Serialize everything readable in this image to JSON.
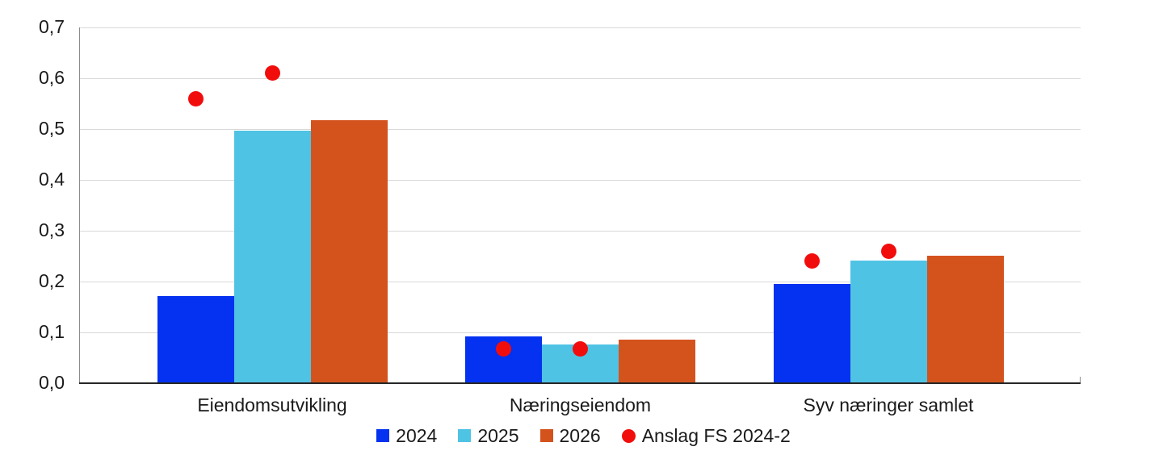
{
  "chart_data": {
    "type": "bar",
    "title": "",
    "categories": [
      "Eiendomsutvikling",
      "Næringseiendom",
      "Syv næringer samlet"
    ],
    "series": [
      {
        "name": "2024",
        "color": "#0531f0",
        "values": [
          0.172,
          0.092,
          0.196
        ]
      },
      {
        "name": "2025",
        "color": "#4fc3e4",
        "values": [
          0.497,
          0.077,
          0.241
        ]
      },
      {
        "name": "2026",
        "color": "#d4531d",
        "values": [
          0.517,
          0.085,
          0.251
        ]
      }
    ],
    "scatter_series": {
      "name": "Anslag FS 2024-2",
      "color": "#f20d0d",
      "marker": "circle",
      "points": [
        {
          "category": "Eiendomsutvikling",
          "category_index": 0,
          "over_series": [
            0,
            1
          ],
          "values": [
            0.56,
            0.61
          ]
        },
        {
          "category": "Næringseiendom",
          "category_index": 1,
          "over_series": [
            0,
            1
          ],
          "values": [
            0.068,
            0.068
          ]
        },
        {
          "category": "Syv næringer samlet",
          "category_index": 2,
          "over_series": [
            0,
            1
          ],
          "values": [
            0.24,
            0.26
          ]
        }
      ]
    },
    "y_axis": {
      "min": 0,
      "max": 0.7,
      "step": 0.1,
      "tick_labels": [
        "0,0",
        "0,1",
        "0,2",
        "0,3",
        "0,4",
        "0,5",
        "0,6",
        "0,7"
      ],
      "decimal_separator": ","
    },
    "x_axis": {
      "labels": [
        "Eiendomsutvikling",
        "Næringseiendom",
        "Syv næringer samlet"
      ]
    },
    "grid": true,
    "legend_position": "bottom",
    "legend_labels": [
      "2024",
      "2025",
      "2026",
      "Anslag FS 2024-2"
    ],
    "colors": {
      "background": "#ffffff",
      "gridline": "#d9d9d9",
      "axis_line": "#262626",
      "spine": "#8c8c8c",
      "text": "#1a1a1a"
    }
  }
}
